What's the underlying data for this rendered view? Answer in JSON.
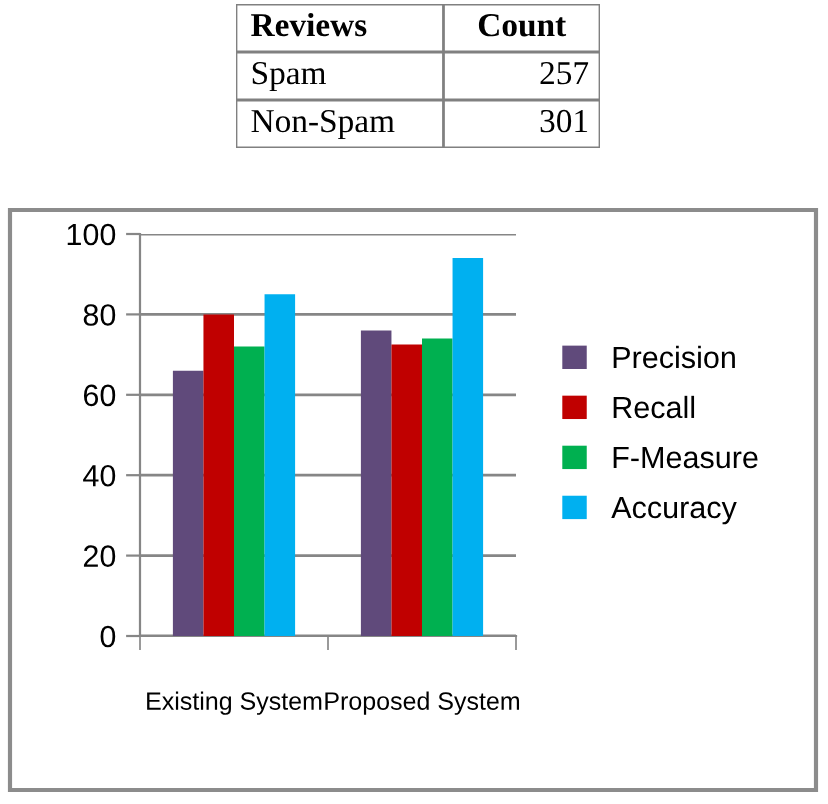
{
  "chart_data": [
    {
      "type": "other",
      "xlabel": "Reviews",
      "ylabel": "Count",
      "categories": [
        "Spam",
        "Non-Spam"
      ],
      "values": [
        257,
        301
      ],
      "data_labels": true
    },
    {
      "type": "bar",
      "categories": [
        "Existing System",
        "Proposed System"
      ],
      "series": [
        {
          "name": "Precision",
          "color": "#604a7b",
          "values": [
            66,
            76
          ]
        },
        {
          "name": "Recall",
          "color": "#c00000",
          "values": [
            80,
            72.5
          ]
        },
        {
          "name": "F-Measure",
          "color": "#00b050",
          "values": [
            72,
            74
          ]
        },
        {
          "name": "Accuracy",
          "color": "#00b0f0",
          "values": [
            85,
            94
          ]
        }
      ],
      "ylim": [
        0,
        100
      ],
      "yticks": [
        0,
        20,
        40,
        60,
        80,
        100
      ],
      "grid": "y",
      "legend": "right"
    }
  ]
}
